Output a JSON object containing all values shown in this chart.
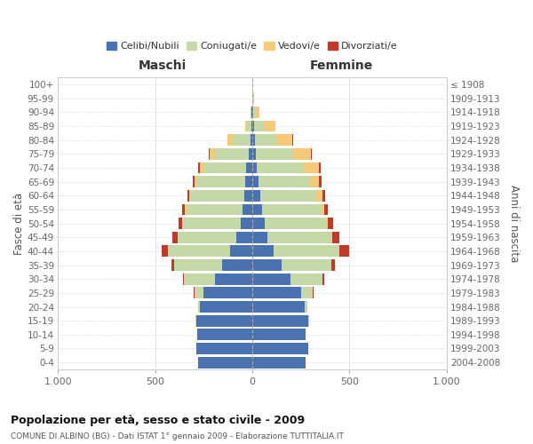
{
  "age_groups": [
    "0-4",
    "5-9",
    "10-14",
    "15-19",
    "20-24",
    "25-29",
    "30-34",
    "35-39",
    "40-44",
    "45-49",
    "50-54",
    "55-59",
    "60-64",
    "65-69",
    "70-74",
    "75-79",
    "80-84",
    "85-89",
    "90-94",
    "95-99",
    "100+"
  ],
  "birth_years": [
    "2004-2008",
    "1999-2003",
    "1994-1998",
    "1989-1993",
    "1984-1988",
    "1979-1983",
    "1974-1978",
    "1969-1973",
    "1964-1968",
    "1959-1963",
    "1954-1958",
    "1949-1953",
    "1944-1948",
    "1939-1943",
    "1934-1938",
    "1929-1933",
    "1924-1928",
    "1919-1923",
    "1914-1918",
    "1909-1913",
    "≤ 1908"
  ],
  "colors": {
    "celibi": "#4a72b0",
    "coniugati": "#c5d9a8",
    "vedovi": "#f5c97a",
    "divorziati": "#c0392b"
  },
  "maschi": {
    "celibi": [
      280,
      290,
      285,
      290,
      270,
      250,
      190,
      155,
      115,
      80,
      60,
      50,
      40,
      35,
      30,
      20,
      10,
      5,
      3,
      2,
      2
    ],
    "coniugati": [
      0,
      0,
      0,
      3,
      10,
      45,
      160,
      245,
      320,
      305,
      295,
      290,
      280,
      250,
      220,
      170,
      90,
      25,
      5,
      0,
      0
    ],
    "vedovi": [
      0,
      0,
      0,
      0,
      0,
      0,
      0,
      0,
      0,
      0,
      5,
      5,
      5,
      10,
      20,
      30,
      30,
      5,
      0,
      0,
      0
    ],
    "divorziati": [
      0,
      0,
      0,
      0,
      0,
      5,
      5,
      15,
      30,
      25,
      20,
      15,
      10,
      10,
      10,
      5,
      0,
      0,
      0,
      0,
      0
    ]
  },
  "femmine": {
    "celibi": [
      275,
      290,
      275,
      290,
      270,
      250,
      195,
      150,
      110,
      80,
      65,
      50,
      40,
      30,
      25,
      20,
      15,
      10,
      5,
      2,
      2
    ],
    "coniugati": [
      0,
      0,
      0,
      3,
      15,
      60,
      165,
      255,
      340,
      325,
      315,
      300,
      290,
      265,
      240,
      190,
      110,
      50,
      10,
      2,
      0
    ],
    "vedovi": [
      0,
      0,
      0,
      0,
      0,
      0,
      0,
      0,
      0,
      5,
      10,
      20,
      30,
      50,
      80,
      90,
      80,
      60,
      20,
      5,
      0
    ],
    "divorziati": [
      0,
      0,
      0,
      0,
      0,
      5,
      10,
      20,
      50,
      40,
      25,
      20,
      15,
      10,
      5,
      5,
      5,
      0,
      0,
      0,
      0
    ]
  },
  "xlim": 1000,
  "title": "Popolazione per età, sesso e stato civile - 2009",
  "subtitle": "COMUNE DI ALBINO (BG) - Dati ISTAT 1° gennaio 2009 - Elaborazione TUTTITALIA.IT",
  "ylabel_left": "Fasce di età",
  "ylabel_right": "Anni di nascita",
  "xlabel_left": "Maschi",
  "xlabel_right": "Femmine",
  "background_color": "#ffffff",
  "grid_color": "#cccccc"
}
